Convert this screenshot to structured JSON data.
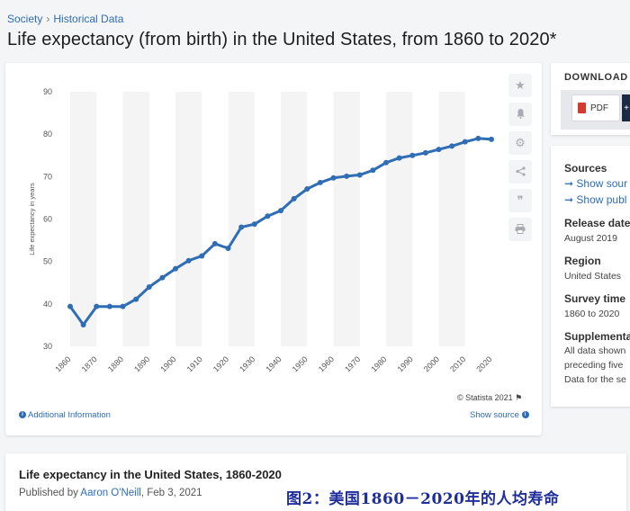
{
  "breadcrumb": {
    "items": [
      "Society",
      "Historical Data"
    ],
    "separator": "›"
  },
  "page_title": "Life expectancy (from birth) in the United States, from 1860 to 2020*",
  "tools": [
    {
      "name": "star-icon",
      "glyph": "★"
    },
    {
      "name": "bell-icon",
      "glyph": "🔔"
    },
    {
      "name": "gear-icon",
      "glyph": "⚙"
    },
    {
      "name": "share-icon",
      "glyph": "⋖"
    },
    {
      "name": "quote-icon",
      "glyph": "❞"
    },
    {
      "name": "print-icon",
      "glyph": "⎙"
    }
  ],
  "chart_footer": {
    "credit": "© Statista 2021",
    "additional_info": "Additional Information",
    "show_source": "Show source"
  },
  "download": {
    "title": "DOWNLOAD",
    "pdf_label": "PDF",
    "plus": "+"
  },
  "meta": {
    "sources_label": "Sources",
    "sources_links": [
      "➞ Show sour",
      "➞ Show publ"
    ],
    "release_label": "Release date",
    "release_value": "August 2019",
    "region_label": "Region",
    "region_value": "United States",
    "survey_label": "Survey time",
    "survey_value": "1860 to 2020",
    "supp_label": "Supplementa",
    "supp_lines": [
      "All data shown",
      "preceding five",
      "Data for the se"
    ]
  },
  "bottom": {
    "title": "Life expectancy in the United States, 1860-2020",
    "published_prefix": "Published by",
    "author": "Aaron O'Neill",
    "date": ", Feb 3, 2021"
  },
  "caption": "图2：美国1860－2020年的人均寿命",
  "chart_data": {
    "type": "line",
    "ylabel": "Life expectancy in years",
    "xlabel": "",
    "ylim": [
      30,
      90
    ],
    "yticks": [
      30,
      40,
      50,
      60,
      70,
      80,
      90
    ],
    "xticks": [
      1860,
      1870,
      1880,
      1890,
      1900,
      1910,
      1920,
      1930,
      1940,
      1950,
      1960,
      1970,
      1980,
      1990,
      2000,
      2010,
      2020
    ],
    "xlim": [
      1860,
      2020
    ],
    "grid": "alternating vertical bands",
    "line_color": "#2f6db5",
    "x": [
      1860,
      1865,
      1870,
      1875,
      1880,
      1885,
      1890,
      1895,
      1900,
      1905,
      1910,
      1915,
      1920,
      1925,
      1930,
      1935,
      1940,
      1945,
      1950,
      1955,
      1960,
      1965,
      1970,
      1975,
      1980,
      1985,
      1990,
      1995,
      2000,
      2005,
      2010,
      2015,
      2020
    ],
    "y": [
      39.4,
      35.1,
      39.4,
      39.4,
      39.4,
      41.1,
      44.0,
      46.2,
      48.3,
      50.2,
      51.3,
      54.2,
      53.1,
      58.1,
      58.8,
      60.7,
      62.0,
      64.8,
      67.1,
      68.6,
      69.7,
      70.1,
      70.4,
      71.5,
      73.3,
      74.4,
      75.0,
      75.6,
      76.4,
      77.2,
      78.2,
      79.0,
      78.8
    ]
  }
}
